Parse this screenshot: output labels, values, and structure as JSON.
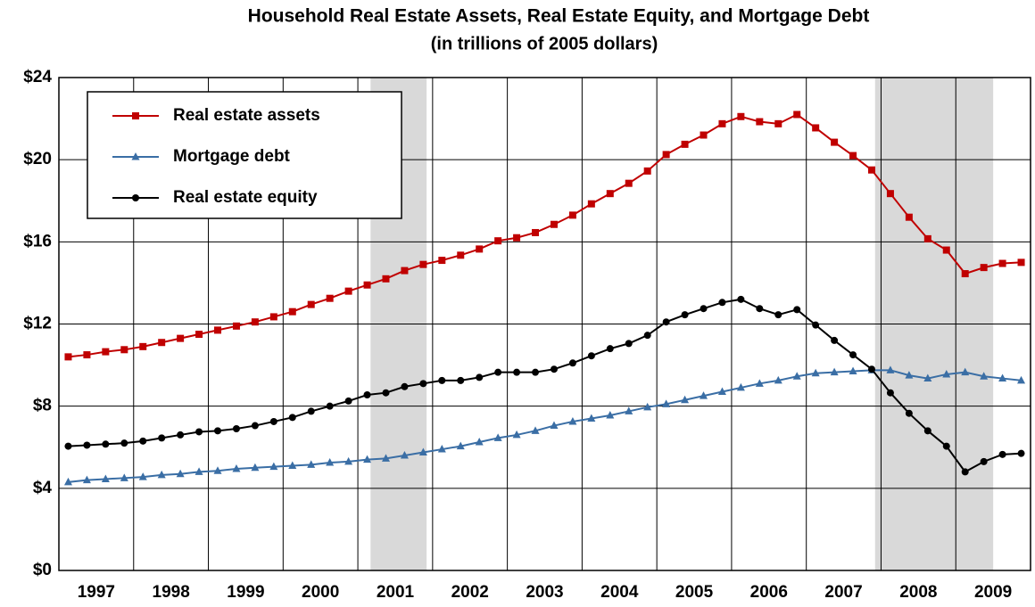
{
  "chart_data": {
    "type": "line",
    "title": "Household Real Estate Assets, Real Estate Equity, and Mortgage Debt",
    "subtitle": "(in trillions of 2005 dollars)",
    "categories": [
      "1997",
      null,
      null,
      null,
      "1998",
      null,
      null,
      null,
      "1999",
      null,
      null,
      null,
      "2000",
      null,
      null,
      null,
      "2001",
      null,
      null,
      null,
      "2002",
      null,
      null,
      null,
      "2003",
      null,
      null,
      null,
      "2004",
      null,
      null,
      null,
      "2005",
      null,
      null,
      null,
      "2006",
      null,
      null,
      null,
      "2007",
      null,
      null,
      null,
      "2008",
      null,
      null,
      null,
      "2009",
      null,
      null,
      null
    ],
    "series": [
      {
        "name": "Real estate assets",
        "color": "#c00000",
        "marker": "square",
        "values": [
          10.4,
          10.5,
          10.65,
          10.75,
          10.9,
          11.1,
          11.3,
          11.5,
          11.7,
          11.9,
          12.1,
          12.35,
          12.6,
          12.95,
          13.25,
          13.6,
          13.9,
          14.2,
          14.6,
          14.9,
          15.1,
          15.35,
          15.65,
          16.05,
          16.2,
          16.45,
          16.85,
          17.3,
          17.85,
          18.35,
          18.85,
          19.45,
          20.25,
          20.75,
          21.2,
          21.75,
          22.1,
          21.85,
          21.75,
          22.2,
          21.55,
          20.85,
          20.2,
          19.5,
          18.35,
          17.2,
          16.15,
          15.6,
          14.45,
          14.75,
          14.95,
          15.0
        ]
      },
      {
        "name": "Mortgage debt",
        "color": "#3a6ea5",
        "marker": "triangle",
        "values": [
          4.3,
          4.4,
          4.45,
          4.5,
          4.55,
          4.65,
          4.7,
          4.8,
          4.85,
          4.95,
          5.0,
          5.05,
          5.1,
          5.15,
          5.25,
          5.3,
          5.4,
          5.45,
          5.6,
          5.75,
          5.9,
          6.05,
          6.25,
          6.45,
          6.6,
          6.8,
          7.05,
          7.25,
          7.4,
          7.55,
          7.75,
          7.95,
          8.1,
          8.3,
          8.5,
          8.7,
          8.9,
          9.1,
          9.25,
          9.45,
          9.6,
          9.65,
          9.7,
          9.75,
          9.75,
          9.5,
          9.35,
          9.55,
          9.65,
          9.45,
          9.35,
          9.25
        ]
      },
      {
        "name": "Real estate equity",
        "color": "#000000",
        "marker": "circle",
        "values": [
          6.05,
          6.1,
          6.15,
          6.2,
          6.3,
          6.45,
          6.6,
          6.75,
          6.8,
          6.9,
          7.05,
          7.25,
          7.45,
          7.75,
          8.0,
          8.25,
          8.55,
          8.65,
          8.95,
          9.1,
          9.25,
          9.25,
          9.4,
          9.65,
          9.65,
          9.65,
          9.8,
          10.1,
          10.45,
          10.8,
          11.05,
          11.45,
          12.1,
          12.45,
          12.75,
          13.05,
          13.2,
          12.75,
          12.45,
          12.7,
          11.95,
          11.2,
          10.5,
          9.8,
          8.65,
          7.65,
          6.8,
          6.05,
          4.8,
          5.3,
          5.65,
          5.7
        ]
      }
    ],
    "recessions": [
      [
        2001.17,
        2001.92
      ],
      [
        2007.92,
        2009.5
      ]
    ],
    "recession_color": "#d9d9d9",
    "ylim": [
      0,
      24
    ],
    "yticks": [
      {
        "value": 0,
        "label": "$0"
      },
      {
        "value": 4,
        "label": "$4"
      },
      {
        "value": 8,
        "label": "$8"
      },
      {
        "value": 12,
        "label": "$12"
      },
      {
        "value": 16,
        "label": "$16"
      },
      {
        "value": 20,
        "label": "$20"
      },
      {
        "value": 24,
        "label": "$24"
      }
    ],
    "grid": true,
    "legend": "top-left"
  }
}
